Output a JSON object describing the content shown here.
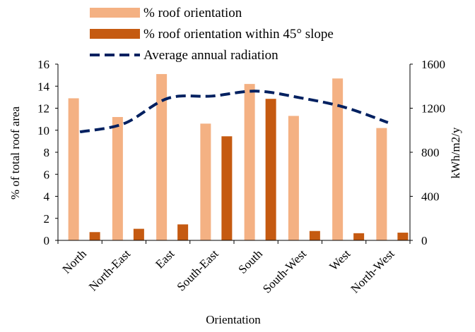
{
  "chart_data": {
    "type": "bar",
    "title": "",
    "xlabel": "Orientation",
    "ylabel": "% of total roof area",
    "ylabel_right": "kWh/m2/y",
    "categories": [
      "North",
      "North-East",
      "East",
      "South-East",
      "South",
      "South-West",
      "West",
      "North-West"
    ],
    "ylim": [
      0,
      16
    ],
    "yticks": [
      "0",
      "2",
      "4",
      "6",
      "8",
      "10",
      "12",
      "14",
      "16"
    ],
    "ylim_right": [
      0,
      1600
    ],
    "yticks_right": [
      "0",
      "400",
      "800",
      "1200",
      "1600"
    ],
    "grid": false,
    "legend_position": "top",
    "series": [
      {
        "name": "% roof orientation",
        "type": "bar",
        "axis": "left",
        "color": "#F4B183",
        "values": [
          12.9,
          11.2,
          15.1,
          10.6,
          14.2,
          11.3,
          14.7,
          10.2
        ]
      },
      {
        "name": "% roof orientation within 45° slope",
        "type": "bar",
        "axis": "left",
        "color": "#C55A11",
        "values": [
          0.75,
          1.05,
          1.45,
          9.45,
          12.85,
          0.85,
          0.65,
          0.7
        ]
      },
      {
        "name": "Average annual radiation",
        "type": "line",
        "axis": "right",
        "color": "#002060",
        "dash": "dashed",
        "values": [
          985,
          1060,
          1290,
          1310,
          1355,
          1295,
          1210,
          1070
        ]
      }
    ]
  }
}
